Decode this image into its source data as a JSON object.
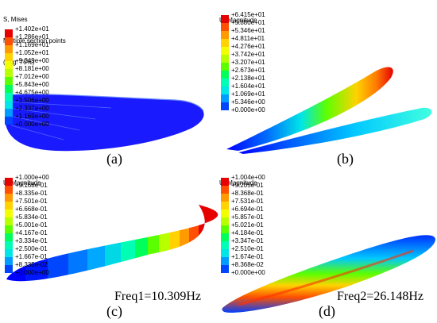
{
  "palette": [
    "#e60000",
    "#ff4f00",
    "#ff9a00",
    "#ffd200",
    "#f2ff00",
    "#b8ff00",
    "#5cff00",
    "#00ff5a",
    "#00ffb4",
    "#00e6e6",
    "#009cff",
    "#0046ff",
    "#0000ff"
  ],
  "panels": [
    {
      "id": "a",
      "caption": "(a)",
      "title_lines": [
        "S, Mises",
        "Multiple section points",
        "(Avg: 75%)"
      ],
      "values": [
        "+1.402e+01",
        "+1.286e+01",
        "+1.169e+01",
        "+1.052e+01",
        "+9.349e+00",
        "+8.181e+00",
        "+7.012e+00",
        "+5.843e+00",
        "+4.675e+00",
        "+3.506e+00",
        "+2.337e+00",
        "+1.169e+00",
        "+0.000e+00"
      ],
      "frequency": ""
    },
    {
      "id": "b",
      "caption": "(b)",
      "title_lines": [
        "U, Magnitude"
      ],
      "values": [
        "+6.415e+01",
        "+5.880e+01",
        "+5.346e+01",
        "+4.811e+01",
        "+4.276e+01",
        "+3.742e+01",
        "+3.207e+01",
        "+2.673e+01",
        "+2.138e+01",
        "+1.604e+01",
        "+1.069e+01",
        "+5.346e+00",
        "+0.000e+00"
      ],
      "frequency": ""
    },
    {
      "id": "c",
      "caption": "(c)",
      "title_lines": [
        "U, Magnitude"
      ],
      "values": [
        "+1.000e+00",
        "+9.168e-01",
        "+8.335e-01",
        "+7.501e-01",
        "+6.668e-01",
        "+5.834e-01",
        "+5.001e-01",
        "+4.167e-01",
        "+3.334e-01",
        "+2.500e-01",
        "+1.667e-01",
        "+8.335e-02",
        "+0.000e+00"
      ],
      "frequency": "Freq1=10.309Hz"
    },
    {
      "id": "d",
      "caption": "(d)",
      "title_lines": [
        "U, Magnitude"
      ],
      "values": [
        "+1.004e+00",
        "+9.205e-01",
        "+8.368e-01",
        "+7.531e-01",
        "+6.694e-01",
        "+5.857e-01",
        "+5.021e-01",
        "+4.184e-01",
        "+3.347e-01",
        "+2.510e-01",
        "+1.674e-01",
        "+8.368e-02",
        "+0.000e+00"
      ],
      "frequency": "Freq2=26.148Hz"
    }
  ]
}
